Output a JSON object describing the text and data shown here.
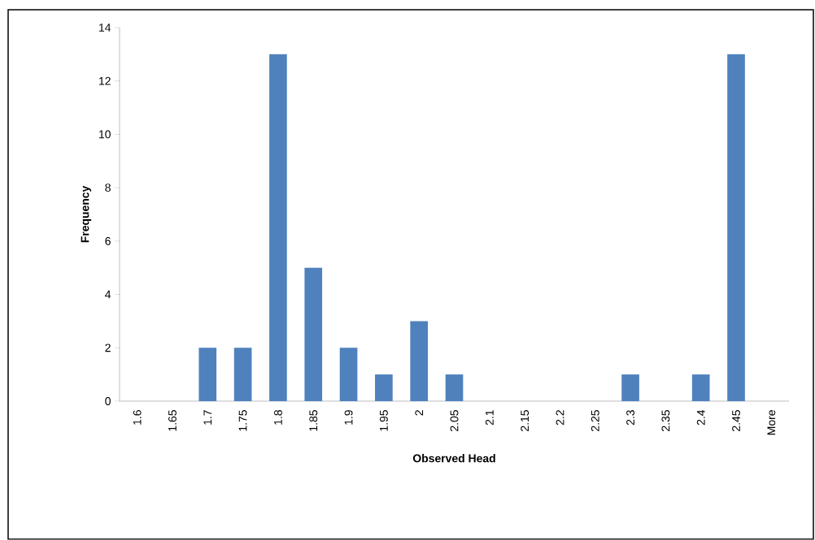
{
  "chart_data": {
    "type": "bar",
    "xlabel": "**Observed Head**",
    "ylabel": "**Frequency**",
    "categories": [
      "1.6",
      "1.65",
      "1.7",
      "1.75",
      "1.8",
      "1.85",
      "1.9",
      "1.95",
      "2",
      "2.05",
      "2.1",
      "2.15",
      "2.2",
      "2.25",
      "2.3",
      "2.35",
      "2.4",
      "2.45",
      "More"
    ],
    "values": [
      0,
      0,
      2,
      2,
      13,
      5,
      2,
      1,
      3,
      1,
      0,
      0,
      0,
      0,
      1,
      0,
      1,
      13,
      0
    ],
    "color": "#4f81bd",
    "ylim": [
      0,
      14
    ],
    "yticks": [
      0,
      2,
      4,
      6,
      8,
      10,
      12,
      14
    ]
  }
}
